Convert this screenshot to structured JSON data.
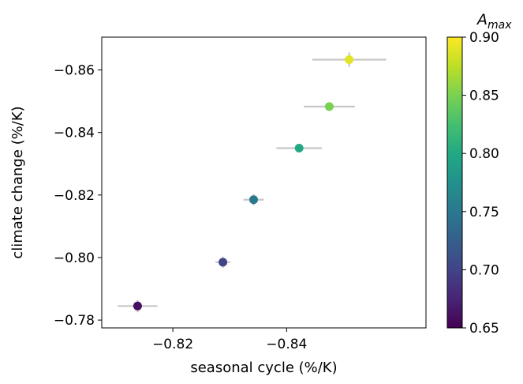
{
  "chart_data": {
    "type": "scatter",
    "title": "",
    "xlabel": "seasonal cycle (%/K)",
    "ylabel": "climate change (%/K)",
    "xlim": [
      -0.8075,
      -0.8645
    ],
    "ylim": [
      -0.7775,
      -0.8705
    ],
    "x_ticks": [
      -0.82,
      -0.84
    ],
    "x_tick_labels": [
      "−0.82",
      "−0.84"
    ],
    "y_ticks": [
      -0.78,
      -0.8,
      -0.82,
      -0.84,
      -0.86
    ],
    "y_tick_labels": [
      "−0.78",
      "−0.80",
      "−0.82",
      "−0.84",
      "−0.86"
    ],
    "grid": false,
    "points": [
      {
        "x": -0.8138,
        "y": -0.7845,
        "x_err": 0.0035,
        "y_err": 0.002,
        "color_value": 0.66
      },
      {
        "x": -0.8288,
        "y": -0.7985,
        "x_err": 0.0013,
        "y_err": 0.0018,
        "color_value": 0.7
      },
      {
        "x": -0.8342,
        "y": -0.8185,
        "x_err": 0.0018,
        "y_err": 0.0018,
        "color_value": 0.75
      },
      {
        "x": -0.8422,
        "y": -0.835,
        "x_err": 0.004,
        "y_err": 0.001,
        "color_value": 0.8
      },
      {
        "x": -0.8475,
        "y": -0.8483,
        "x_err": 0.0045,
        "y_err": 0.001,
        "color_value": 0.85
      },
      {
        "x": -0.851,
        "y": -0.8633,
        "x_err": 0.0065,
        "y_err": 0.0023,
        "color_value": 0.89
      }
    ],
    "colorbar": {
      "title_base": "A",
      "title_sub": "max",
      "range": [
        0.65,
        0.9
      ],
      "ticks": [
        0.65,
        0.7,
        0.75,
        0.8,
        0.85,
        0.9
      ],
      "tick_labels": [
        "0.65",
        "0.70",
        "0.75",
        "0.80",
        "0.85",
        "0.90"
      ],
      "colormap": "viridis"
    },
    "colors": {
      "errorbar": "#c8c8c8",
      "axes": "#000000"
    }
  }
}
